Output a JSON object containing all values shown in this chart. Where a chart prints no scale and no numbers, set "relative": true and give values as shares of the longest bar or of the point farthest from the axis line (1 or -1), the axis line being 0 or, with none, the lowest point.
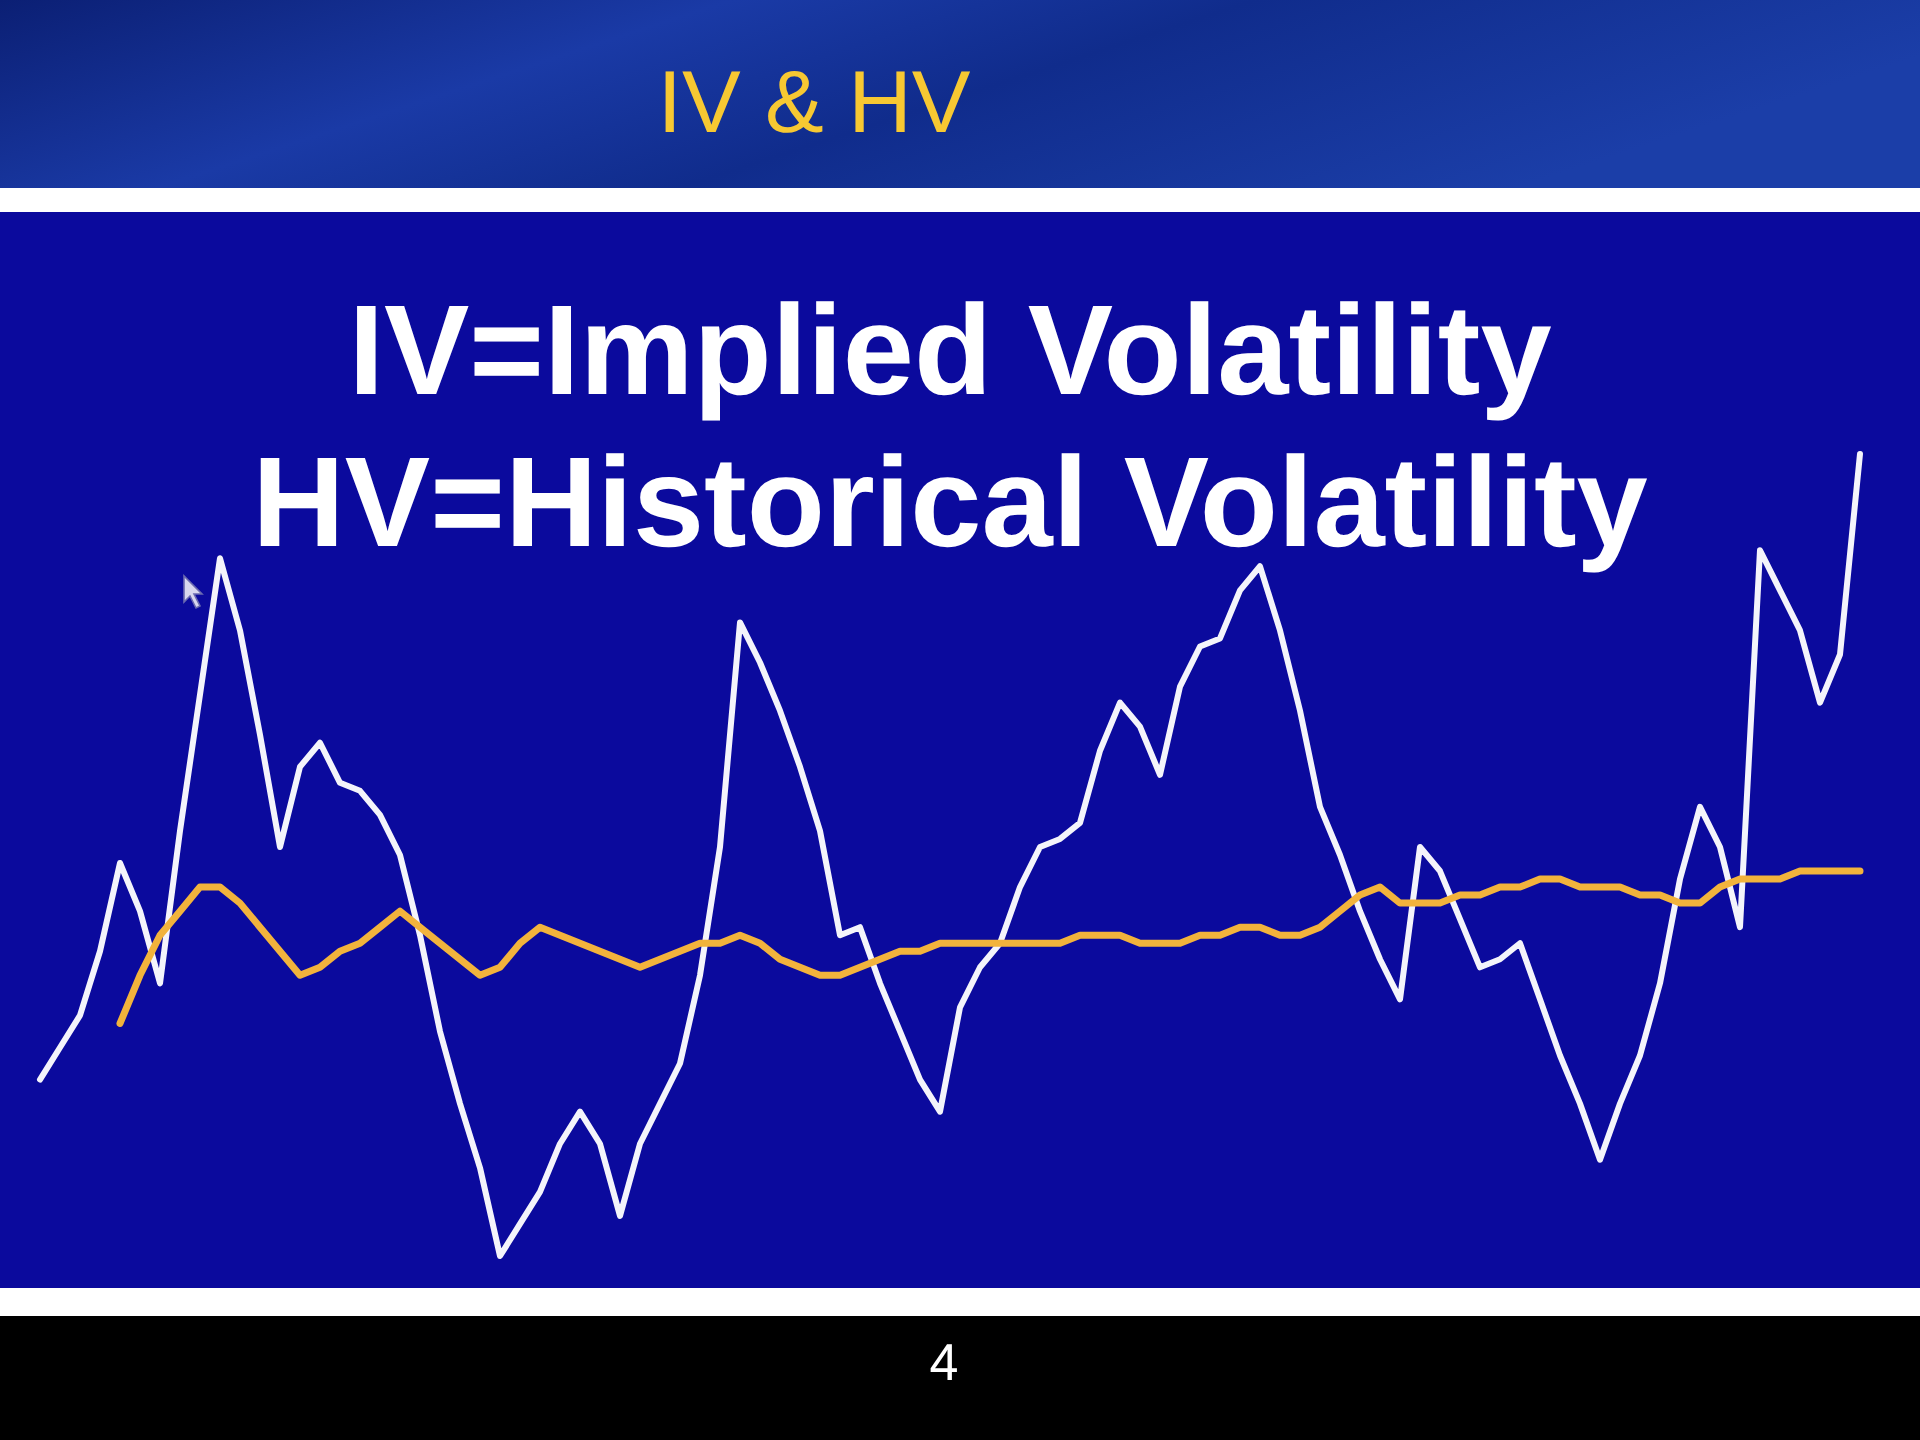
{
  "chart_data": {
    "type": "line",
    "title": "IV & HV",
    "subtitle": "IV=Implied Volatility\nHV=Historical Volatility",
    "relative": true,
    "categories": [
      null,
      null,
      null,
      null,
      null,
      null,
      null,
      null,
      null,
      null,
      null,
      null,
      null,
      null,
      null,
      null,
      null,
      null,
      null,
      null,
      null,
      null,
      null,
      null,
      null,
      null,
      null,
      null,
      null,
      null,
      null,
      null,
      null,
      null,
      null,
      null,
      null,
      null,
      null,
      null,
      null,
      null,
      null,
      null,
      null,
      null,
      null,
      null,
      null,
      null,
      null,
      null,
      null,
      null,
      null,
      null,
      null,
      null,
      null,
      null,
      null,
      null,
      null,
      null,
      null,
      null,
      null,
      null,
      null,
      null,
      null,
      null,
      null,
      null,
      null,
      null,
      null,
      null,
      null,
      null,
      null,
      null,
      null,
      null,
      null,
      null,
      null,
      null,
      null,
      null,
      null,
      null
    ],
    "series": [
      {
        "color": "#f4f4fb",
        "values": [
          0.22,
          0.26,
          0.3,
          0.38,
          0.49,
          0.43,
          0.34,
          0.53,
          0.7,
          0.87,
          0.78,
          0.65,
          0.51,
          0.61,
          0.64,
          0.59,
          0.58,
          0.55,
          0.5,
          0.4,
          0.28,
          0.19,
          0.11,
          0,
          0.04,
          0.08,
          0.14,
          0.18,
          0.14,
          0.05,
          0.14,
          0.19,
          0.24,
          0.35,
          0.51,
          0.79,
          0.74,
          0.68,
          0.61,
          0.53,
          0.4,
          0.41,
          0.34,
          0.28,
          0.22,
          0.18,
          0.31,
          0.36,
          0.39,
          0.46,
          0.51,
          0.52,
          0.54,
          0.63,
          0.69,
          0.66,
          0.6,
          0.71,
          0.76,
          0.77,
          0.83,
          0.86,
          0.78,
          0.68,
          0.56,
          0.5,
          0.43,
          0.37,
          0.32,
          0.51,
          0.48,
          0.42,
          0.36,
          0.37,
          0.39,
          0.32,
          0.25,
          0.19,
          0.12,
          0.19,
          0.25,
          0.34,
          0.47,
          0.56,
          0.51,
          0.41,
          0.88,
          0.83,
          0.78,
          0.69,
          0.75,
          1
        ]
      },
      {
        "color": "#f2b33c",
        "values": [
          null,
          null,
          null,
          null,
          0.29,
          0.35,
          0.4,
          0.43,
          0.46,
          0.46,
          0.44,
          0.41,
          0.38,
          0.35,
          0.36,
          0.38,
          0.39,
          0.41,
          0.43,
          0.41,
          0.39,
          0.37,
          0.35,
          0.36,
          0.39,
          0.41,
          0.4,
          0.39,
          0.38,
          0.37,
          0.36,
          0.37,
          0.38,
          0.39,
          0.39,
          0.4,
          0.39,
          0.37,
          0.36,
          0.35,
          0.35,
          0.36,
          0.37,
          0.38,
          0.38,
          0.39,
          0.39,
          0.39,
          0.39,
          0.39,
          0.39,
          0.39,
          0.4,
          0.4,
          0.4,
          0.39,
          0.39,
          0.39,
          0.4,
          0.4,
          0.41,
          0.41,
          0.4,
          0.4,
          0.41,
          0.43,
          0.45,
          0.46,
          0.44,
          0.44,
          0.44,
          0.45,
          0.45,
          0.46,
          0.46,
          0.47,
          0.47,
          0.46,
          0.46,
          0.46,
          0.45,
          0.45,
          0.44,
          0.44,
          0.46,
          0.47,
          0.47,
          0.47,
          0.48,
          0.48,
          0.48,
          0.48
        ]
      }
    ],
    "annotations": [
      "4"
    ]
  }
}
